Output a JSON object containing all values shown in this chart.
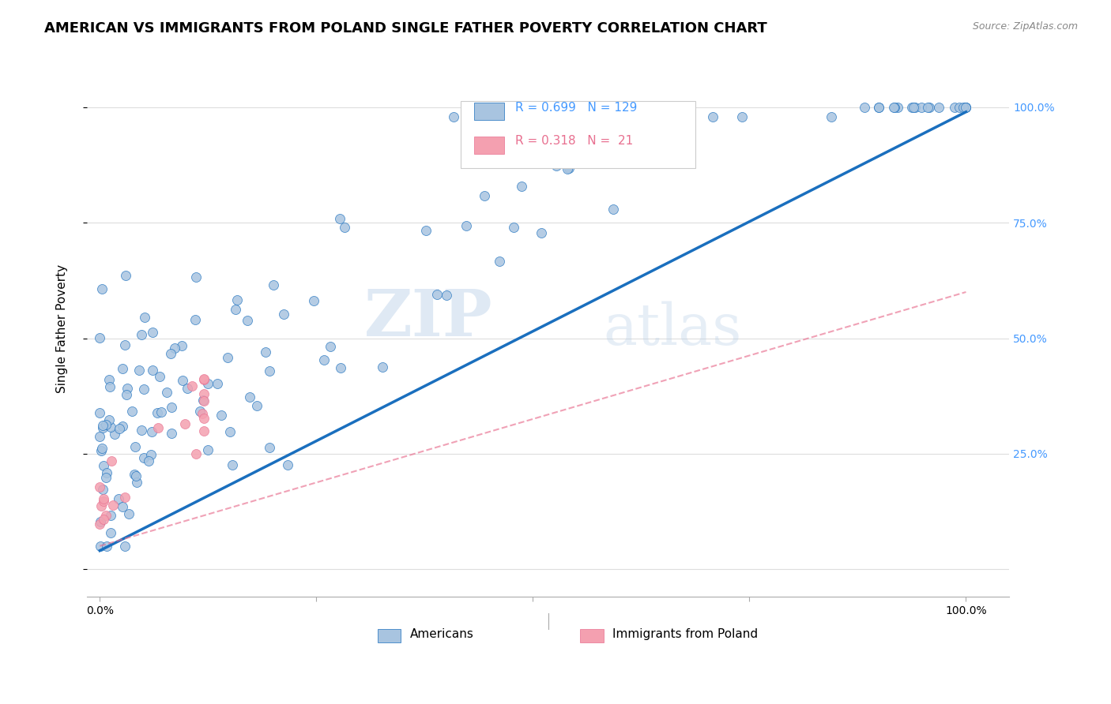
{
  "title": "AMERICAN VS IMMIGRANTS FROM POLAND SINGLE FATHER POVERTY CORRELATION CHART",
  "source": "Source: ZipAtlas.com",
  "ylabel": "Single Father Poverty",
  "legend_labels": [
    "Americans",
    "Immigrants from Poland"
  ],
  "r_american": 0.699,
  "n_american": 129,
  "r_poland": 0.318,
  "n_poland": 21,
  "american_color": "#a8c4e0",
  "poland_color": "#f4a0b0",
  "american_line_color": "#1a6fbe",
  "poland_line_color": "#e87090",
  "background_color": "#ffffff",
  "watermark_zip": "ZIP",
  "watermark_atlas": "atlas",
  "am_intercept": 0.04,
  "am_slope": 0.95,
  "po_intercept": 0.05,
  "po_slope": 0.55
}
